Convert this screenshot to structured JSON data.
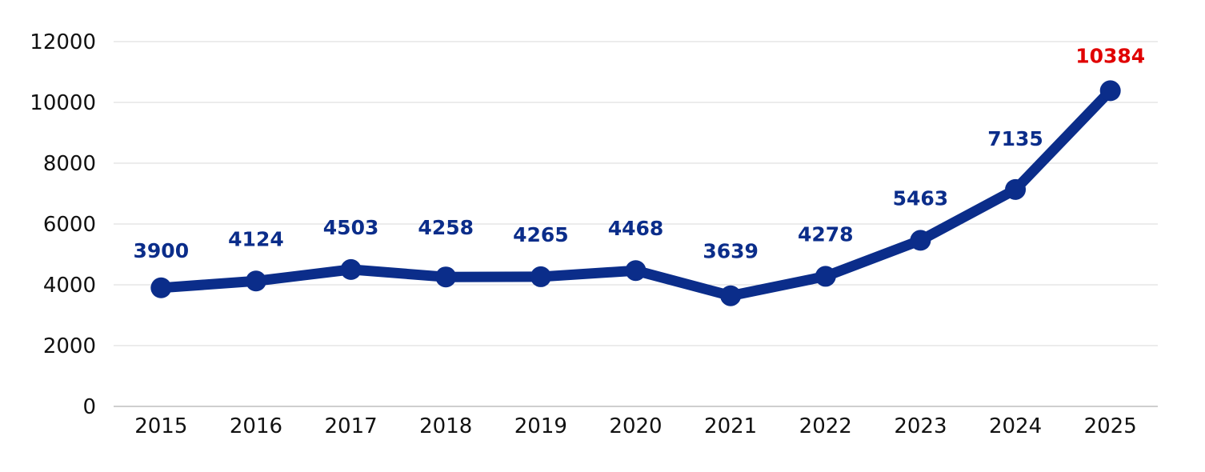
{
  "chart_data": {
    "type": "line",
    "title": "",
    "xlabel": "",
    "ylabel": "",
    "categories": [
      "2015",
      "2016",
      "2017",
      "2018",
      "2019",
      "2020",
      "2021",
      "2022",
      "2023",
      "2024",
      "2025"
    ],
    "series": [
      {
        "values": [
          3900,
          4124,
          4503,
          4258,
          4265,
          4468,
          3639,
          4278,
          5463,
          7135,
          10384
        ]
      }
    ],
    "data_labels": [
      "3900",
      "4124",
      "4503",
      "4258",
      "4265",
      "4468",
      "3639",
      "4278",
      "5463",
      "7135",
      "10384"
    ],
    "ylim": [
      0,
      12000
    ],
    "yticks": [
      0,
      2000,
      4000,
      6000,
      8000,
      10000,
      12000
    ],
    "ytick_labels": [
      "0",
      "2000",
      "4000",
      "6000",
      "8000",
      "10000",
      "12000"
    ],
    "grid": true,
    "legend": "none",
    "colors": {
      "line": "#0b2d8a",
      "label": "#0b2d8a",
      "highlight_label": "#e00000",
      "grid": "#d9d9d9",
      "axis": "#bfbfbf"
    },
    "highlight_index": 10
  }
}
